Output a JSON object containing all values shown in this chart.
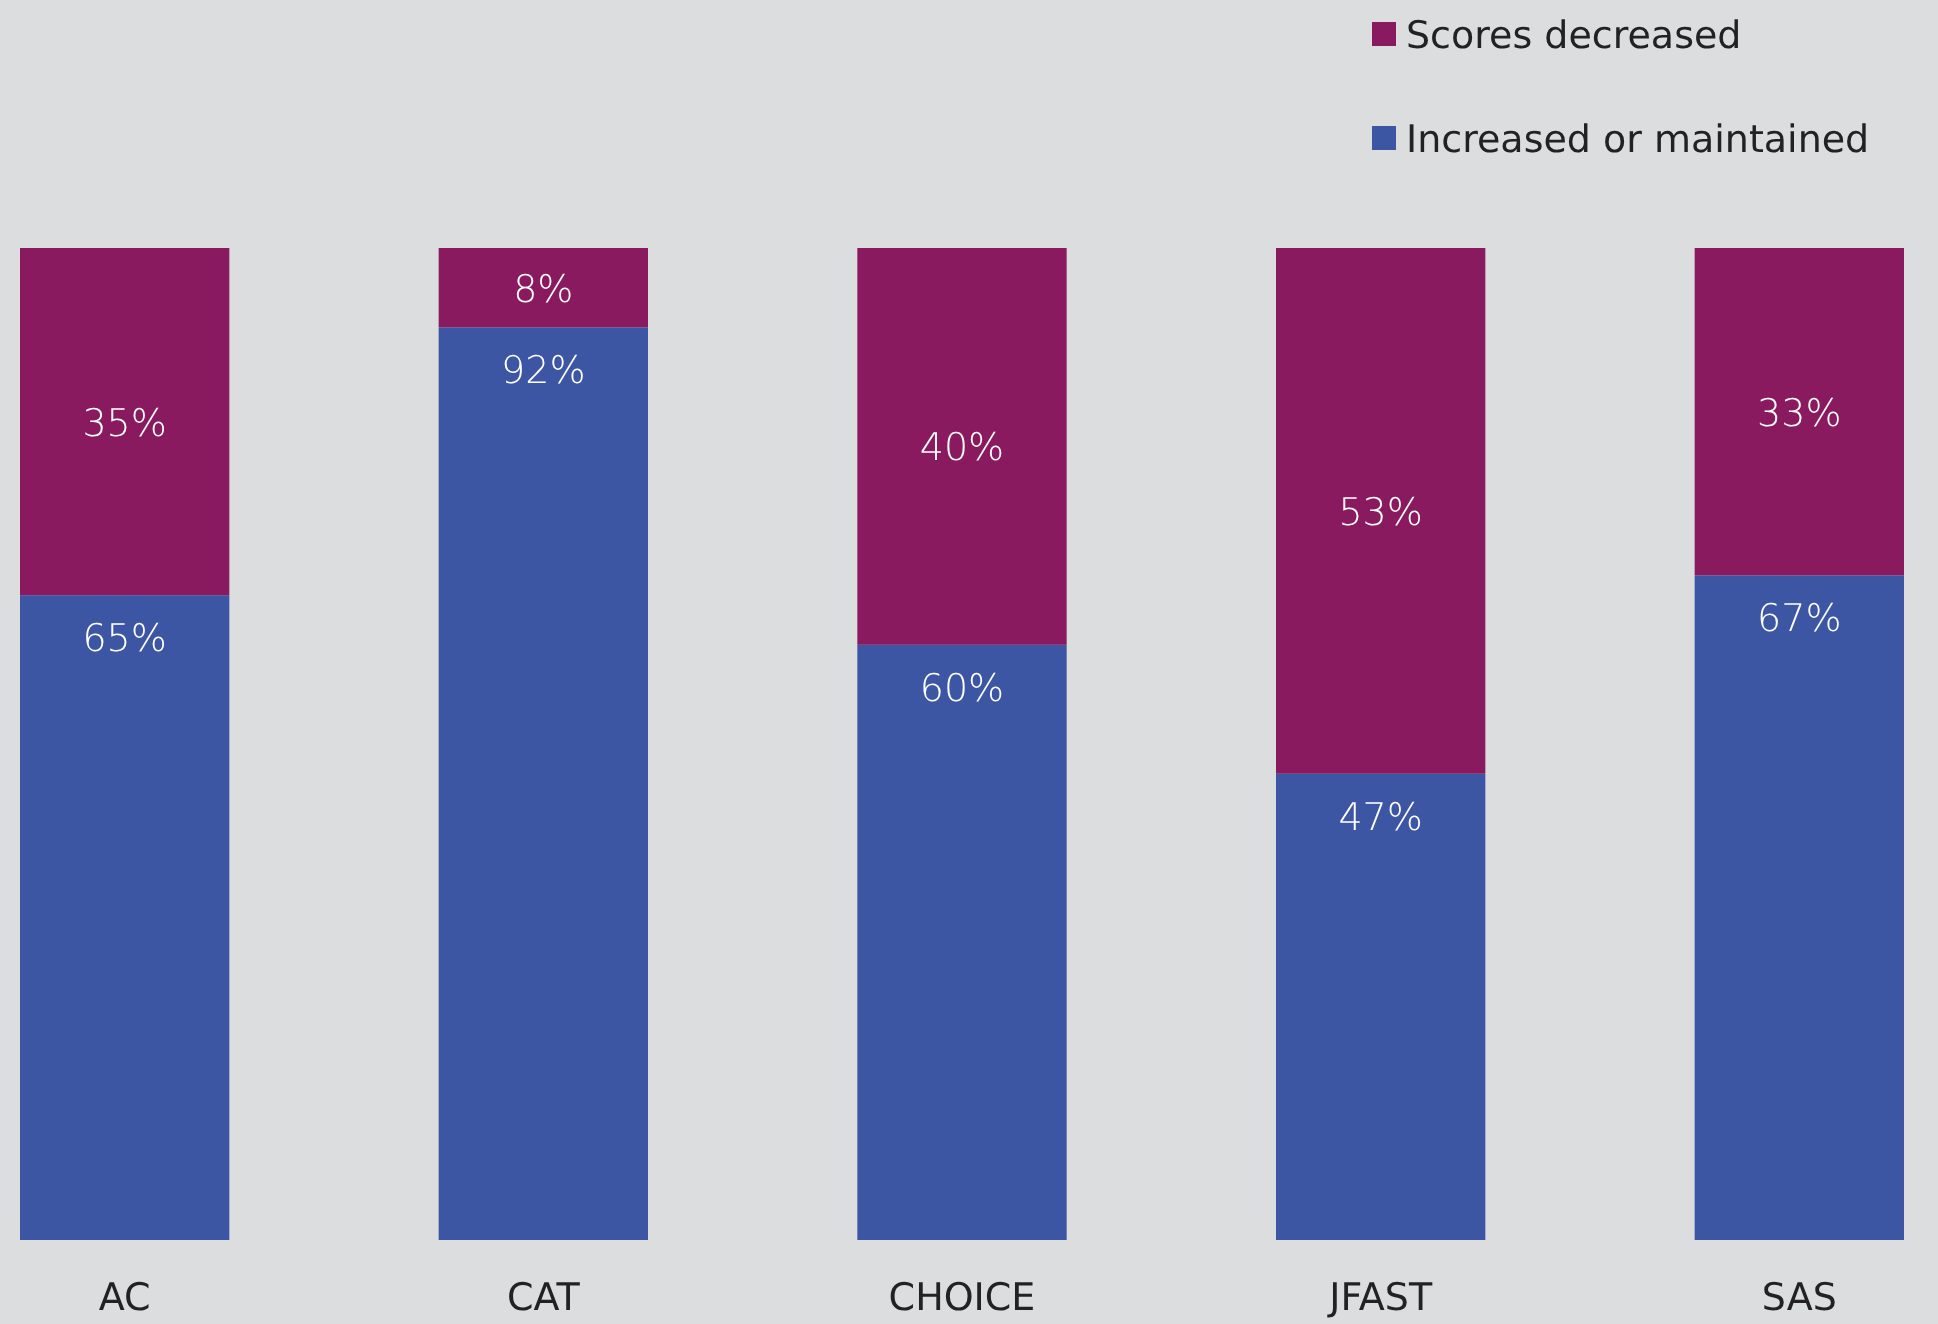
{
  "chart_data": {
    "type": "bar",
    "stacked": true,
    "categories": [
      "AC",
      "CAT",
      "CHOICE",
      "JFAST",
      "SAS"
    ],
    "series": [
      {
        "name": "Increased or maintained",
        "color": "#3c56a3",
        "values": [
          65,
          92,
          60,
          47,
          67
        ],
        "value_labels": [
          "65%",
          "92%",
          "60%",
          "47%",
          "67%"
        ]
      },
      {
        "name": "Scores decreased",
        "color": "#8a1a5f",
        "values": [
          35,
          8,
          40,
          53,
          33
        ],
        "value_labels": [
          "35%",
          "8%",
          "40%",
          "53%",
          "33%"
        ]
      }
    ],
    "legend": "top right"
  }
}
